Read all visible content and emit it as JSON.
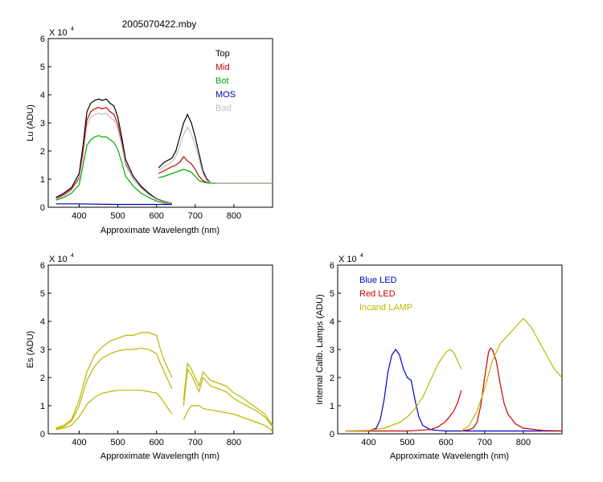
{
  "figure_title": "2005070422.mby",
  "colors": {
    "top": "#000000",
    "mid": "#cc0000",
    "bot": "#00aa00",
    "mos": "#0000aa",
    "bad": "#c0c0c0",
    "es": "#b8b800",
    "blue_led": "#0000cc",
    "red_led": "#cc0000",
    "lamp": "#b8b800"
  },
  "chart_data": [
    {
      "type": "line",
      "title": "2005070422.mby",
      "xlabel": "Approximate Wavelength (nm)",
      "ylabel": "Lu (ADU)",
      "y_multiplier": "X 10",
      "y_exponent": "4",
      "xlim": [
        320,
        900
      ],
      "ylim": [
        0,
        6
      ],
      "xticks": [
        "400",
        "500",
        "600",
        "700",
        "800"
      ],
      "yticks": [
        "0",
        "1",
        "2",
        "3",
        "4",
        "5",
        "6"
      ],
      "legend_position": "top-right",
      "series": [
        {
          "name": "Top",
          "color_key": "top",
          "segments": [
            {
              "x": [
                340,
                360,
                380,
                400,
                410,
                420,
                430,
                440,
                450,
                460,
                470,
                480,
                490,
                500,
                510,
                520,
                540,
                560,
                580,
                600,
                620,
                640
              ],
              "y": [
                0.35,
                0.5,
                0.7,
                1.2,
                2.2,
                3.4,
                3.7,
                3.8,
                3.85,
                3.8,
                3.85,
                3.7,
                3.6,
                3.2,
                2.5,
                1.7,
                1.1,
                0.75,
                0.5,
                0.3,
                0.2,
                0.15
              ]
            },
            {
              "x": [
                605,
                620,
                640,
                650,
                660,
                670,
                680,
                690,
                700,
                710,
                720,
                730,
                740,
                760,
                800,
                850,
                900
              ],
              "y": [
                1.4,
                1.6,
                1.75,
                2.0,
                2.5,
                3.0,
                3.3,
                3.0,
                2.5,
                1.9,
                1.3,
                1.0,
                0.88,
                0.85,
                0.85,
                0.85,
                0.85
              ]
            }
          ]
        },
        {
          "name": "Mid",
          "color_key": "mid",
          "segments": [
            {
              "x": [
                340,
                360,
                380,
                400,
                410,
                420,
                430,
                440,
                450,
                460,
                470,
                480,
                490,
                500,
                510,
                520,
                540,
                560,
                580,
                600,
                620,
                640
              ],
              "y": [
                0.3,
                0.45,
                0.65,
                1.05,
                2.0,
                3.1,
                3.4,
                3.5,
                3.55,
                3.5,
                3.55,
                3.4,
                3.3,
                2.95,
                2.3,
                1.55,
                1.0,
                0.7,
                0.45,
                0.28,
                0.18,
                0.14
              ]
            },
            {
              "x": [
                605,
                620,
                640,
                650,
                660,
                670,
                680,
                690,
                700,
                710,
                720,
                730,
                740,
                760,
                800,
                850,
                900
              ],
              "y": [
                1.2,
                1.3,
                1.45,
                1.5,
                1.6,
                1.8,
                1.65,
                1.55,
                1.35,
                1.1,
                0.95,
                0.88,
                0.86,
                0.85,
                0.85,
                0.85,
                0.85
              ]
            }
          ]
        },
        {
          "name": "Bot",
          "color_key": "bot",
          "segments": [
            {
              "x": [
                340,
                360,
                380,
                400,
                410,
                420,
                430,
                440,
                450,
                460,
                470,
                480,
                490,
                500,
                510,
                520,
                540,
                560,
                580,
                600,
                620,
                640
              ],
              "y": [
                0.25,
                0.35,
                0.5,
                0.8,
                1.5,
                2.2,
                2.4,
                2.5,
                2.55,
                2.5,
                2.5,
                2.4,
                2.3,
                2.05,
                1.6,
                1.1,
                0.75,
                0.5,
                0.35,
                0.22,
                0.15,
                0.12
              ]
            },
            {
              "x": [
                605,
                620,
                640,
                650,
                660,
                670,
                680,
                690,
                700,
                710,
                720,
                730,
                740,
                760,
                800,
                850,
                900
              ],
              "y": [
                1.05,
                1.1,
                1.2,
                1.25,
                1.3,
                1.35,
                1.3,
                1.25,
                1.1,
                0.95,
                0.9,
                0.87,
                0.86,
                0.85,
                0.85,
                0.85,
                0.85
              ]
            }
          ]
        },
        {
          "name": "MOS",
          "color_key": "mos",
          "segments": [
            {
              "x": [
                340,
                400,
                500,
                600,
                640
              ],
              "y": [
                0.12,
                0.12,
                0.1,
                0.1,
                0.1
              ]
            }
          ]
        },
        {
          "name": "Bad",
          "color_key": "bad",
          "segments": [
            {
              "x": [
                340,
                360,
                380,
                400,
                410,
                420,
                430,
                440,
                450,
                460,
                470,
                480,
                490,
                500,
                510,
                520,
                540,
                560,
                580,
                600,
                620,
                640
              ],
              "y": [
                0.28,
                0.4,
                0.6,
                1.0,
                1.8,
                2.9,
                3.2,
                3.3,
                3.35,
                3.3,
                3.35,
                3.2,
                3.1,
                2.8,
                2.2,
                1.5,
                1.0,
                0.68,
                0.45,
                0.28,
                0.18,
                0.14
              ]
            },
            {
              "x": [
                605,
                620,
                640,
                650,
                660,
                670,
                680,
                690,
                700,
                710,
                720,
                730,
                740,
                760,
                800,
                850,
                900
              ],
              "y": [
                1.3,
                1.45,
                1.6,
                1.8,
                2.2,
                2.6,
                2.85,
                2.6,
                2.2,
                1.7,
                1.2,
                0.95,
                0.88,
                0.85,
                0.85,
                0.85,
                0.85
              ]
            }
          ]
        }
      ]
    },
    {
      "type": "line",
      "xlabel": "Approximate Wavelength (nm)",
      "ylabel": "Es (ADU)",
      "y_multiplier": "X 10",
      "y_exponent": "4",
      "xlim": [
        320,
        900
      ],
      "ylim": [
        0,
        6
      ],
      "xticks": [
        "400",
        "500",
        "600",
        "700",
        "800"
      ],
      "yticks": [
        "0",
        "1",
        "2",
        "3",
        "4",
        "5",
        "6"
      ],
      "series": [
        {
          "color_key": "es",
          "segments": [
            {
              "x": [
                340,
                360,
                380,
                400,
                420,
                440,
                460,
                480,
                500,
                520,
                540,
                560,
                580,
                600,
                610,
                620,
                630,
                640
              ],
              "y": [
                0.2,
                0.3,
                0.5,
                1.2,
                2.2,
                2.8,
                3.1,
                3.3,
                3.4,
                3.5,
                3.5,
                3.6,
                3.6,
                3.5,
                3.0,
                2.6,
                2.3,
                2.0
              ]
            },
            {
              "x": [
                670,
                680,
                690,
                700,
                710,
                720,
                740,
                760,
                780,
                800,
                820,
                840,
                860,
                880,
                900
              ],
              "y": [
                1.2,
                2.5,
                2.3,
                2.0,
                1.7,
                2.2,
                1.9,
                1.8,
                1.7,
                1.45,
                1.3,
                1.1,
                0.9,
                0.7,
                0.3
              ]
            }
          ]
        },
        {
          "color_key": "es",
          "segments": [
            {
              "x": [
                340,
                360,
                380,
                400,
                420,
                440,
                460,
                480,
                500,
                520,
                540,
                560,
                580,
                600,
                610,
                620,
                630,
                640
              ],
              "y": [
                0.18,
                0.25,
                0.45,
                1.0,
                1.9,
                2.4,
                2.7,
                2.85,
                2.95,
                3.0,
                3.0,
                3.05,
                3.0,
                2.85,
                2.5,
                2.2,
                1.9,
                1.6
              ]
            },
            {
              "x": [
                670,
                680,
                690,
                700,
                710,
                720,
                740,
                760,
                780,
                800,
                820,
                840,
                860,
                880,
                900
              ],
              "y": [
                1.0,
                2.3,
                2.1,
                1.8,
                1.5,
                2.0,
                1.7,
                1.6,
                1.5,
                1.25,
                1.1,
                0.95,
                0.8,
                0.6,
                0.25
              ]
            }
          ]
        },
        {
          "color_key": "es",
          "segments": [
            {
              "x": [
                340,
                360,
                380,
                400,
                420,
                440,
                460,
                480,
                500,
                520,
                540,
                560,
                580,
                600,
                610,
                620,
                630,
                640
              ],
              "y": [
                0.15,
                0.2,
                0.3,
                0.6,
                1.05,
                1.3,
                1.45,
                1.5,
                1.55,
                1.55,
                1.55,
                1.55,
                1.5,
                1.45,
                1.3,
                1.1,
                0.9,
                0.7
              ]
            },
            {
              "x": [
                670,
                680,
                690,
                700,
                710,
                720,
                740,
                760,
                780,
                800,
                820,
                840,
                860,
                880,
                900
              ],
              "y": [
                0.5,
                0.8,
                1.0,
                1.0,
                1.0,
                0.9,
                0.85,
                0.8,
                0.75,
                0.7,
                0.6,
                0.5,
                0.4,
                0.3,
                0.1
              ]
            }
          ]
        }
      ]
    },
    {
      "type": "line",
      "xlabel": "Approximate Wavelength (nm)",
      "ylabel": "Internal Calib. Lamps (ADU)",
      "y_multiplier": "X 10",
      "y_exponent": "4",
      "xlim": [
        320,
        900
      ],
      "ylim": [
        0,
        6
      ],
      "xticks": [
        "400",
        "500",
        "600",
        "700",
        "800"
      ],
      "yticks": [
        "0",
        "1",
        "2",
        "3",
        "4",
        "5",
        "6"
      ],
      "legend_position": "top-left",
      "series": [
        {
          "name": "Blue LED",
          "color_key": "blue_led",
          "segments": [
            {
              "x": [
                340,
                400,
                420,
                430,
                440,
                450,
                460,
                470,
                480,
                490,
                500,
                510,
                520,
                530,
                540,
                560,
                580,
                600,
                640,
                700,
                800,
                900
              ],
              "y": [
                0.1,
                0.1,
                0.2,
                0.5,
                1.2,
                2.2,
                2.8,
                3.0,
                2.8,
                2.3,
                2.0,
                1.9,
                1.2,
                0.6,
                0.3,
                0.15,
                0.12,
                0.1,
                0.1,
                0.1,
                0.1,
                0.1
              ]
            }
          ]
        },
        {
          "name": "Red LED",
          "color_key": "red_led",
          "segments": [
            {
              "x": [
                340,
                500,
                560,
                580,
                600,
                620,
                630,
                640
              ],
              "y": [
                0.1,
                0.1,
                0.15,
                0.25,
                0.45,
                0.8,
                1.1,
                1.55
              ]
            },
            {
              "x": [
                640,
                660,
                670,
                680,
                690,
                700,
                710,
                715,
                720,
                730,
                740,
                750,
                760,
                780,
                800,
                850,
                900
              ],
              "y": [
                0.1,
                0.15,
                0.2,
                0.4,
                1.0,
                2.0,
                2.9,
                3.05,
                3.0,
                2.6,
                1.8,
                1.1,
                0.7,
                0.35,
                0.2,
                0.12,
                0.1
              ]
            }
          ]
        },
        {
          "name": "Incand LAMP",
          "color_key": "lamp",
          "segments": [
            {
              "x": [
                340,
                400,
                440,
                480,
                500,
                520,
                540,
                560,
                580,
                600,
                610,
                620,
                630,
                640
              ],
              "y": [
                0.1,
                0.12,
                0.2,
                0.4,
                0.6,
                0.9,
                1.3,
                1.9,
                2.5,
                2.9,
                3.0,
                2.9,
                2.6,
                2.3
              ]
            },
            {
              "x": [
                640,
                660,
                680,
                700,
                720,
                740,
                760,
                780,
                800,
                820,
                840,
                860,
                880,
                900
              ],
              "y": [
                0.1,
                0.3,
                0.8,
                1.6,
                2.6,
                3.2,
                3.5,
                3.8,
                4.1,
                3.8,
                3.3,
                2.8,
                2.3,
                2.0
              ]
            }
          ]
        }
      ]
    }
  ]
}
